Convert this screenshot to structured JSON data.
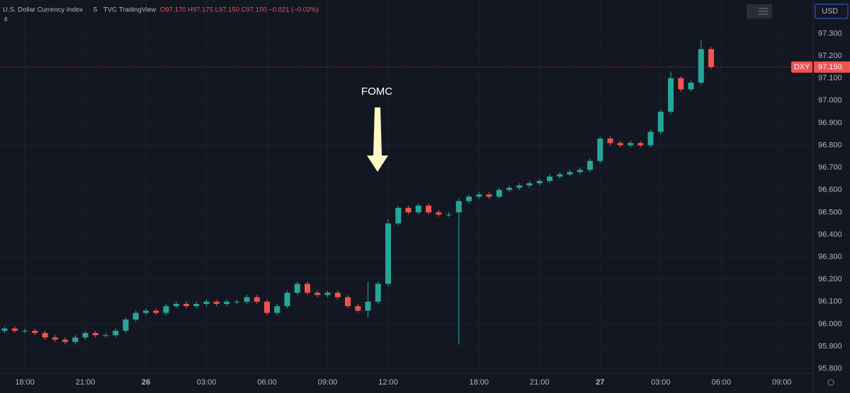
{
  "chart_data": {
    "type": "candlestick",
    "header": {
      "name": "U.S. Dollar Currency Index",
      "interval": "5",
      "exchange": "TVC",
      "source": "TradingView",
      "ohlc": "O97.170 H97.175 L97.150 C97.150 −0.021 (−0.02%)",
      "indicators": "8"
    },
    "currency": "USD",
    "symbol": "DXY",
    "last_price": {
      "value": 97.15,
      "label": "97.150"
    },
    "annotation": "FOMC",
    "up_color": "#26a69a",
    "down_color": "#ef5350",
    "x": [
      "17:00",
      "17:30",
      "18:00",
      "18:30",
      "19:00",
      "19:30",
      "20:00",
      "20:30",
      "21:00",
      "21:30",
      "22:00",
      "22:30",
      "23:00",
      "23:30",
      "00:00",
      "00:30",
      "01:00",
      "01:30",
      "02:00",
      "02:30",
      "03:00",
      "03:30",
      "04:00",
      "04:30",
      "05:00",
      "05:30",
      "06:00",
      "06:30",
      "07:00",
      "07:30",
      "08:00",
      "08:30",
      "09:00",
      "09:30",
      "10:00",
      "10:30",
      "11:00",
      "11:30",
      "12:00",
      "12:30",
      "13:00",
      "13:30",
      "14:00",
      "14:30",
      "15:00",
      "17:00",
      "17:30",
      "18:00",
      "18:30",
      "19:00",
      "19:30",
      "20:00",
      "20:30",
      "21:00",
      "21:30",
      "22:00",
      "22:30",
      "23:00",
      "23:30",
      "00:00",
      "00:30",
      "01:00",
      "01:30",
      "02:00",
      "02:30",
      "03:00",
      "03:30",
      "04:00",
      "04:30",
      "05:00",
      "05:30"
    ],
    "open": [
      95.97,
      95.98,
      95.97,
      95.97,
      95.96,
      95.94,
      95.93,
      95.92,
      95.94,
      95.96,
      95.95,
      95.95,
      95.97,
      96.02,
      96.05,
      96.06,
      96.05,
      96.08,
      96.09,
      96.08,
      96.09,
      96.1,
      96.09,
      96.1,
      96.1,
      96.12,
      96.1,
      96.05,
      96.08,
      96.14,
      96.18,
      96.14,
      96.13,
      96.14,
      96.12,
      96.08,
      96.06,
      96.1,
      96.18,
      96.45,
      96.52,
      96.5,
      96.53,
      96.5,
      96.49,
      96.5,
      96.55,
      96.57,
      96.58,
      96.57,
      96.6,
      96.61,
      96.62,
      96.63,
      96.64,
      96.66,
      96.67,
      96.68,
      96.69,
      96.73,
      96.83,
      96.81,
      96.8,
      96.81,
      96.8,
      96.86,
      96.95,
      97.1,
      97.05,
      97.08,
      97.23
    ],
    "high": [
      95.99,
      95.99,
      95.98,
      95.98,
      95.97,
      95.95,
      95.94,
      95.95,
      95.97,
      95.97,
      95.96,
      95.98,
      96.03,
      96.06,
      96.07,
      96.07,
      96.09,
      96.1,
      96.1,
      96.1,
      96.11,
      96.11,
      96.11,
      96.11,
      96.13,
      96.13,
      96.11,
      96.09,
      96.15,
      96.19,
      96.19,
      96.15,
      96.15,
      96.15,
      96.13,
      96.09,
      96.19,
      96.19,
      96.47,
      96.53,
      96.53,
      96.54,
      96.54,
      96.51,
      96.5,
      96.56,
      96.58,
      96.59,
      96.59,
      96.61,
      96.62,
      96.63,
      96.64,
      96.65,
      96.67,
      96.68,
      96.69,
      96.7,
      96.74,
      96.84,
      96.84,
      96.82,
      96.82,
      96.82,
      96.87,
      96.96,
      97.13,
      97.11,
      97.09,
      97.27,
      97.24
    ],
    "low": [
      95.96,
      95.96,
      95.96,
      95.95,
      95.93,
      95.92,
      95.91,
      95.91,
      95.93,
      95.94,
      95.94,
      95.94,
      95.96,
      96.01,
      96.04,
      96.04,
      96.04,
      96.07,
      96.07,
      96.07,
      96.08,
      96.08,
      96.08,
      96.09,
      96.09,
      96.09,
      96.04,
      96.04,
      96.07,
      96.13,
      96.13,
      96.12,
      96.12,
      96.11,
      96.07,
      96.05,
      96.03,
      96.09,
      96.17,
      96.44,
      96.49,
      96.49,
      96.49,
      96.48,
      96.48,
      95.91,
      96.54,
      96.56,
      96.56,
      96.56,
      96.59,
      96.6,
      96.61,
      96.62,
      96.63,
      96.65,
      96.66,
      96.67,
      96.68,
      96.72,
      96.8,
      96.79,
      96.79,
      96.79,
      96.79,
      96.85,
      96.94,
      97.04,
      97.04,
      97.07,
      97.14
    ],
    "close": [
      95.98,
      95.97,
      95.97,
      95.96,
      95.94,
      95.93,
      95.92,
      95.94,
      95.96,
      95.95,
      95.95,
      95.97,
      96.02,
      96.05,
      96.06,
      96.05,
      96.08,
      96.09,
      96.08,
      96.09,
      96.1,
      96.09,
      96.1,
      96.1,
      96.12,
      96.1,
      96.05,
      96.08,
      96.14,
      96.18,
      96.14,
      96.13,
      96.14,
      96.12,
      96.08,
      96.06,
      96.1,
      96.18,
      96.45,
      96.52,
      96.5,
      96.53,
      96.5,
      96.49,
      96.49,
      96.55,
      96.57,
      96.58,
      96.57,
      96.6,
      96.61,
      96.62,
      96.63,
      96.64,
      96.66,
      96.67,
      96.68,
      96.69,
      96.73,
      96.83,
      96.81,
      96.8,
      96.81,
      96.8,
      96.86,
      96.95,
      97.1,
      97.05,
      97.08,
      97.23,
      97.15
    ],
    "ylim": [
      95.78,
      97.45
    ],
    "yticks": [
      {
        "value": 95.8,
        "label": "95.800"
      },
      {
        "value": 95.9,
        "label": "95.900"
      },
      {
        "value": 96.0,
        "label": "96.000"
      },
      {
        "value": 96.1,
        "label": "96.100"
      },
      {
        "value": 96.2,
        "label": "96.200"
      },
      {
        "value": 96.3,
        "label": "96.300"
      },
      {
        "value": 96.4,
        "label": "96.400"
      },
      {
        "value": 96.5,
        "label": "96.500"
      },
      {
        "value": 96.6,
        "label": "96.600"
      },
      {
        "value": 96.7,
        "label": "96.700"
      },
      {
        "value": 96.8,
        "label": "96.800"
      },
      {
        "value": 96.9,
        "label": "96.900"
      },
      {
        "value": 97.0,
        "label": "97.000"
      },
      {
        "value": 97.1,
        "label": "97.100"
      },
      {
        "value": 97.2,
        "label": "97.200"
      },
      {
        "value": 97.3,
        "label": "97.300"
      }
    ],
    "xticks": [
      {
        "value": "18:00",
        "label": "18:00"
      },
      {
        "value": "21:00",
        "label": "21:00"
      },
      {
        "value": "00:00",
        "label": "26"
      },
      {
        "value": "03:00",
        "label": "03:00"
      },
      {
        "value": "06:00",
        "label": "06:00"
      },
      {
        "value": "09:00",
        "label": "09:00"
      },
      {
        "value": "12:00",
        "label": "12:00"
      },
      {
        "value": "18:00",
        "label": "18:00"
      },
      {
        "value": "21:00",
        "label": "21:00"
      },
      {
        "value": "00:00",
        "label": "27"
      },
      {
        "value": "03:00",
        "label": "03:00"
      },
      {
        "value": "06:00",
        "label": "06:00"
      },
      {
        "value": "09:00",
        "label": "09:00"
      }
    ]
  }
}
